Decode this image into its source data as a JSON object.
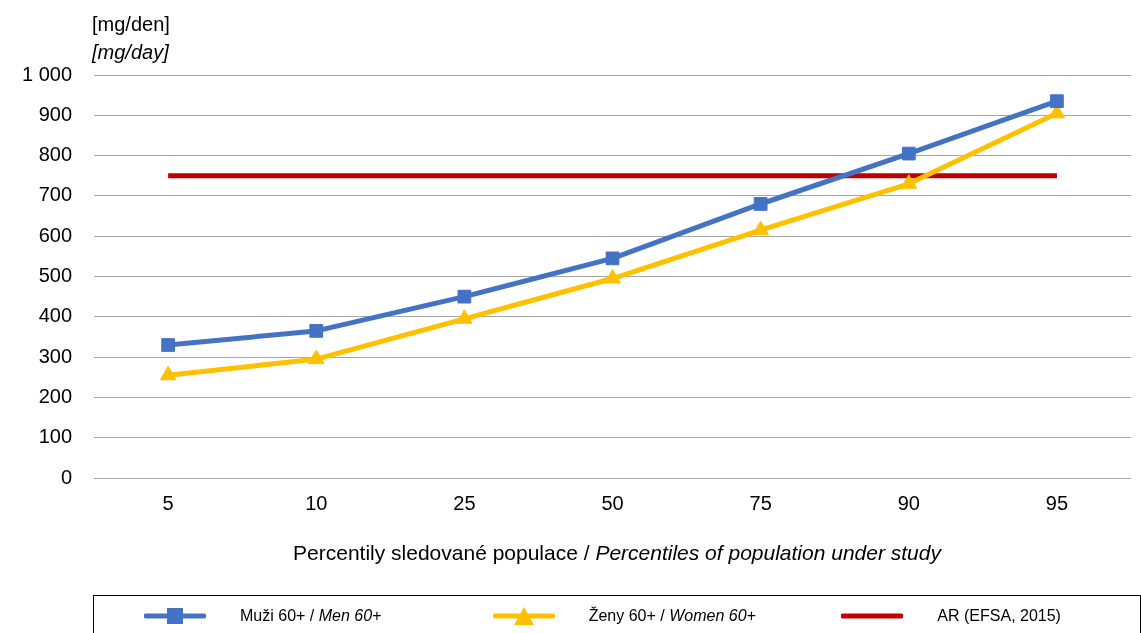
{
  "chart_data": {
    "type": "line",
    "xlabel": "Percentily sledované populace / Percentiles of population under study",
    "ylabel": "[mg/den]\n[mg/day]",
    "categories": [
      "5",
      "10",
      "25",
      "50",
      "75",
      "90",
      "95"
    ],
    "series": [
      {
        "name": "Muži 60+ / Men 60+",
        "color": "#4472c4",
        "marker": "square",
        "values": [
          330,
          365,
          450,
          545,
          680,
          805,
          935
        ]
      },
      {
        "name": "Ženy 60+ / Women 60+",
        "color": "#ffc000",
        "marker": "triangle",
        "values": [
          255,
          295,
          395,
          495,
          615,
          730,
          905
        ]
      },
      {
        "name": "AR (EFSA, 2015)",
        "color": "#c00000",
        "marker": "none",
        "values": [
          750,
          750,
          750,
          750,
          750,
          750,
          750
        ]
      }
    ],
    "ylim": [
      0,
      1000
    ],
    "yticks": [
      0,
      100,
      200,
      300,
      400,
      500,
      600,
      700,
      800,
      900,
      {
        "value": 1000,
        "label": "1 000"
      }
    ],
    "grid": "y",
    "legend": "bottom"
  }
}
